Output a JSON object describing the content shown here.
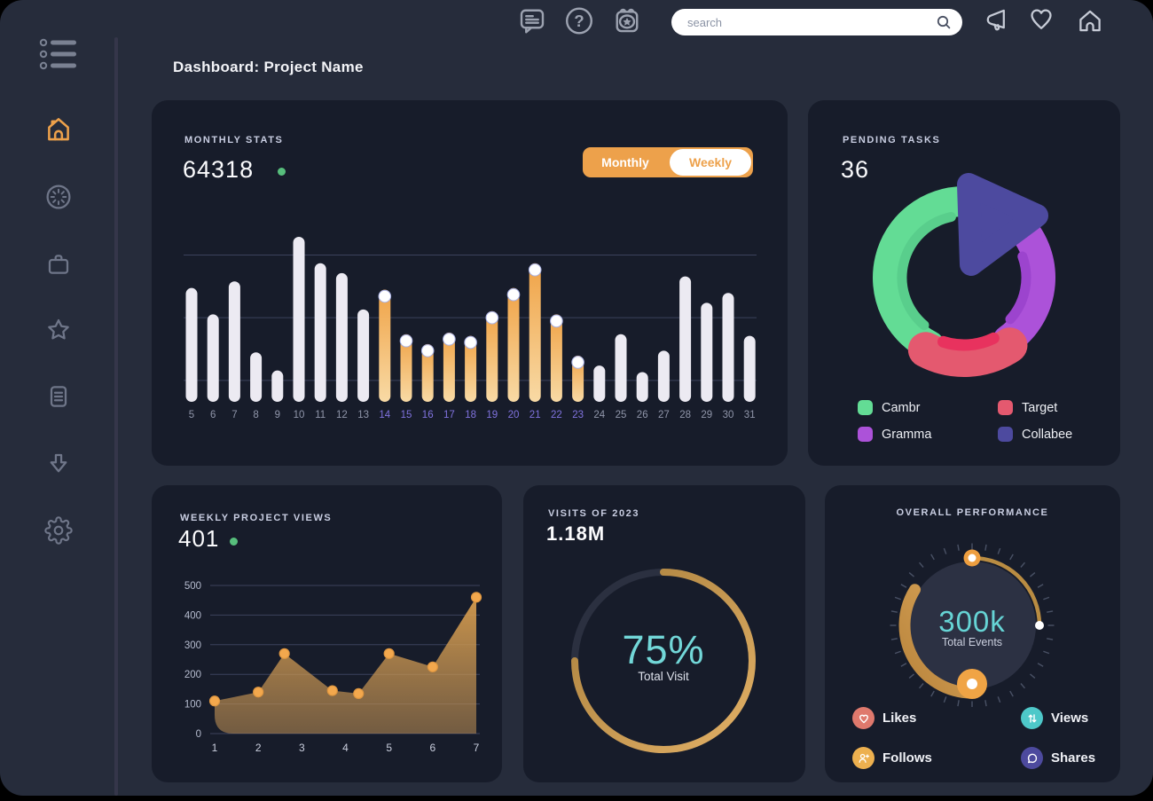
{
  "header": {
    "title": "Dashboard: Project Name"
  },
  "topbar": {
    "search": {
      "placeholder": "search"
    },
    "icons_left": [
      "chat-icon",
      "help-icon",
      "calendar-icon"
    ],
    "icons_right": [
      "megaphone-icon",
      "heart-icon",
      "home-icon"
    ]
  },
  "sidebar": {
    "icons": [
      "menu-icon",
      "home-icon",
      "dashboard-icon",
      "briefcase-icon",
      "star-icon",
      "notes-icon",
      "download-icon",
      "settings-icon"
    ],
    "active": "home-icon",
    "active_color": "#EDA14B"
  },
  "colors": {
    "background": "#000000",
    "window": "#262C3B",
    "card": "#171C2A",
    "accent_orange": "#EDA14B",
    "teal": "#70D6D7",
    "positive_green": "#57BE7C"
  },
  "chart_data": [
    {
      "type": "bar",
      "title": "MONTHLY STATS",
      "total": "64318",
      "toggle": {
        "options": [
          "Monthly",
          "Weekly"
        ],
        "active": "Monthly"
      },
      "categories": [
        5,
        6,
        7,
        8,
        9,
        10,
        11,
        12,
        13,
        14,
        15,
        16,
        17,
        18,
        19,
        20,
        21,
        22,
        23,
        24,
        25,
        26,
        27,
        28,
        29,
        30,
        31
      ],
      "values": [
        69,
        53,
        73,
        30,
        19,
        100,
        84,
        78,
        56,
        68,
        41,
        35,
        42,
        40,
        55,
        69,
        84,
        53,
        28,
        22,
        41,
        18,
        31,
        76,
        60,
        66,
        40
      ],
      "highlight_range": [
        14,
        23
      ],
      "ylim": [
        0,
        100
      ],
      "grid_values": [
        13,
        51,
        89
      ],
      "colors": {
        "bar": "#ECEAF2",
        "highlight_top": "#F0A347",
        "highlight_bottom": "#F8DAA5",
        "label": "#9096AA",
        "label_highlight": "#8073DF",
        "grid": "#3C425C"
      }
    },
    {
      "type": "pie",
      "title": "PENDING TASKS",
      "total": "36",
      "segments": [
        {
          "label": "Cambr",
          "value": 42,
          "color": "#63DC95"
        },
        {
          "label": "Target",
          "value": 17,
          "color": "#E4596F"
        },
        {
          "label": "Gramma",
          "value": 28,
          "color": "#AC52D9"
        },
        {
          "label": "Collabee",
          "value": 13,
          "color": "#4D4A9F"
        }
      ]
    },
    {
      "type": "area",
      "title": "WEEKLY PROJECT VIEWS",
      "total": "401",
      "x": [
        1,
        2,
        2.6,
        3.7,
        4.3,
        5,
        6,
        7
      ],
      "values": [
        110,
        140,
        270,
        145,
        135,
        270,
        225,
        460
      ],
      "xticks": [
        1,
        2,
        3,
        4,
        5,
        6,
        7
      ],
      "yticks": [
        0,
        100,
        200,
        300,
        400,
        500
      ],
      "ylim": [
        0,
        500
      ],
      "colors": {
        "point": "#F3A84D",
        "point_stroke": "#DE9640",
        "fill_top": "#D69C4E",
        "fill_bottom": "#BE9055",
        "grid": "#3C425C",
        "ytick": "#B7BDD0",
        "xtick": "#C9CEDD"
      }
    },
    {
      "type": "donut-progress",
      "title": "VISITS OF 2023",
      "total": "1.18M",
      "percent": 75,
      "center_label": "75%",
      "center_sub": "Total Visit",
      "colors": {
        "ring_start": "#A87F3C",
        "ring_end": "#E2B066",
        "track": "#2B3040",
        "center_text": "#72D7D8"
      }
    },
    {
      "type": "gauge",
      "title": "OVERALL PERFORMANCE",
      "center_value": "300k",
      "center_sub": "Total Events",
      "colors": {
        "arc_start": "#B8843C",
        "arc_end": "#DAA559",
        "center_text": "#66D4D5",
        "handle": "#F0A445"
      },
      "legend": [
        {
          "label": "Likes",
          "icon": "heart-icon",
          "color": "#DF796D"
        },
        {
          "label": "Views",
          "icon": "arrows-up-down-icon",
          "color": "#4EC8C9"
        },
        {
          "label": "Follows",
          "icon": "user-plus-icon",
          "color": "#EDB04F"
        },
        {
          "label": "Shares",
          "icon": "chat-bubble-icon",
          "color": "#4D4A9E"
        }
      ]
    }
  ]
}
